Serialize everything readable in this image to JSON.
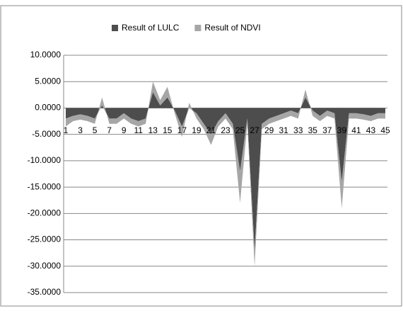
{
  "chart_data": {
    "type": "stacked-area",
    "categories": [
      "1",
      null,
      "3",
      null,
      "5",
      null,
      "7",
      null,
      "9",
      null,
      "11",
      null,
      "13",
      null,
      "15",
      null,
      "17",
      null,
      "19",
      null,
      "21",
      null,
      "23",
      null,
      "25",
      null,
      "27",
      null,
      "29",
      null,
      "31",
      null,
      "33",
      null,
      "35",
      null,
      "37",
      null,
      "39",
      null,
      "41",
      null,
      "43",
      null,
      "45"
    ],
    "series": [
      {
        "name": "Result of LULC",
        "color": "#4d4d4d",
        "values": [
          -2,
          -1.5,
          -1.2,
          -1.5,
          -2,
          0.5,
          -2,
          -2,
          -1,
          -2,
          -2.5,
          -2,
          3,
          0.5,
          2,
          -0.5,
          -3.5,
          0,
          -1,
          -3,
          -5,
          -2.5,
          -1,
          -3,
          -12,
          -2,
          -27,
          -3,
          -2,
          -1.5,
          -1,
          -0.5,
          -1,
          2,
          -0.5,
          -1.5,
          -0.5,
          -1,
          -14,
          -1,
          -1,
          -1.2,
          -1.5,
          -1,
          -1
        ]
      },
      {
        "name": "Result of NDVI",
        "color": "#a6a6a6",
        "values": [
          -1.5,
          -1,
          -1,
          -1,
          -1,
          1.5,
          -1,
          -1,
          -1,
          -1,
          -1,
          -1,
          2,
          1,
          2,
          -0.5,
          -2,
          1,
          -1,
          -1,
          -2,
          -1,
          -1,
          -1,
          -6,
          -1,
          -3,
          -1,
          -1,
          -1,
          -1,
          -1,
          -1,
          1.5,
          -1,
          -1,
          -1,
          -1,
          -5,
          -1,
          -1,
          -1,
          -1,
          -1,
          -1
        ]
      }
    ],
    "ylim": [
      -35,
      10
    ],
    "yticks": [
      {
        "value": -35,
        "label": "-35.0000"
      },
      {
        "value": -30,
        "label": "-30.0000"
      },
      {
        "value": -25,
        "label": "-25.0000"
      },
      {
        "value": -20,
        "label": "-20.0000"
      },
      {
        "value": -15,
        "label": "-15.0000"
      },
      {
        "value": -10,
        "label": "-10.0000"
      },
      {
        "value": -5,
        "label": "-5.0000"
      },
      {
        "value": 0,
        "label": "0.0000"
      },
      {
        "value": 5,
        "label": "5.0000"
      },
      {
        "value": 10,
        "label": "10.0000"
      }
    ],
    "grid": true,
    "legend": "top"
  }
}
